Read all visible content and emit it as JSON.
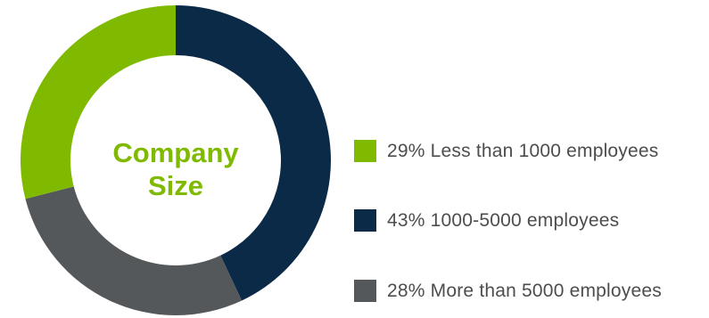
{
  "chart_data": {
    "type": "pie",
    "title": "Company Size",
    "title_lines": [
      "Company",
      "Size"
    ],
    "categories": [
      "Less than 1000 employees",
      "1000-5000 employees",
      "More than 5000 employees"
    ],
    "values": [
      29,
      43,
      28
    ],
    "unit": "%",
    "colors": [
      "#7fba00",
      "#0a2a47",
      "#54585a"
    ],
    "legend_labels": [
      "29% Less than 1000 employees",
      "43% 1000-5000 employees",
      "28% More than 5000 employees"
    ],
    "donut": true,
    "legend": "right"
  },
  "title_color": "#7fba00"
}
